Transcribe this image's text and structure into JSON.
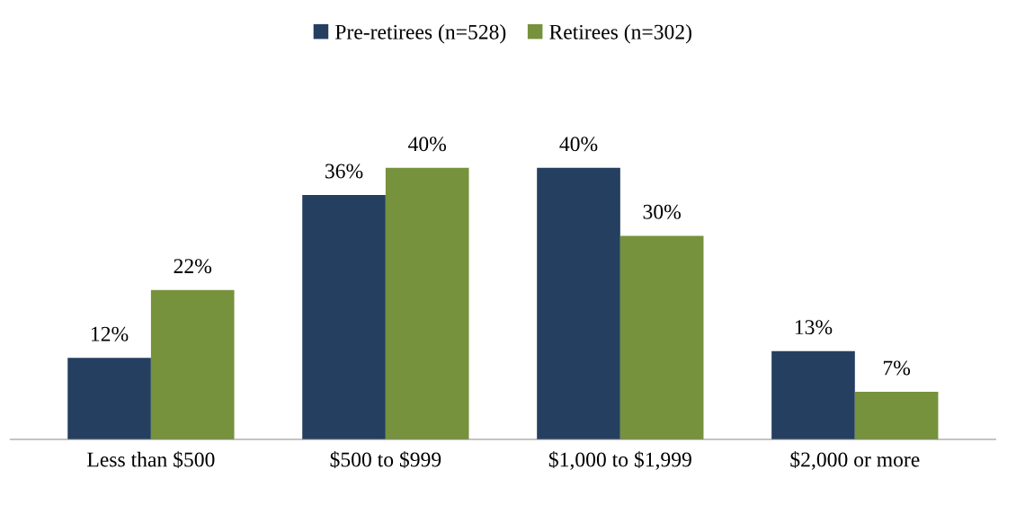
{
  "chart_data": {
    "type": "bar",
    "categories": [
      "Less than $500",
      "$500 to $999",
      "$1,000 to $1,999",
      "$2,000 or more"
    ],
    "series": [
      {
        "name": "Pre-retirees (n=528)",
        "color": "#253f60",
        "values": [
          12,
          36,
          40,
          13
        ],
        "value_labels": [
          "12%",
          "36%",
          "40%",
          "13%"
        ]
      },
      {
        "name": "Retirees (n=302)",
        "color": "#76923c",
        "values": [
          22,
          40,
          30,
          7
        ],
        "value_labels": [
          "22%",
          "40%",
          "30%",
          "7%"
        ]
      }
    ],
    "legend": "top",
    "grid": false
  }
}
